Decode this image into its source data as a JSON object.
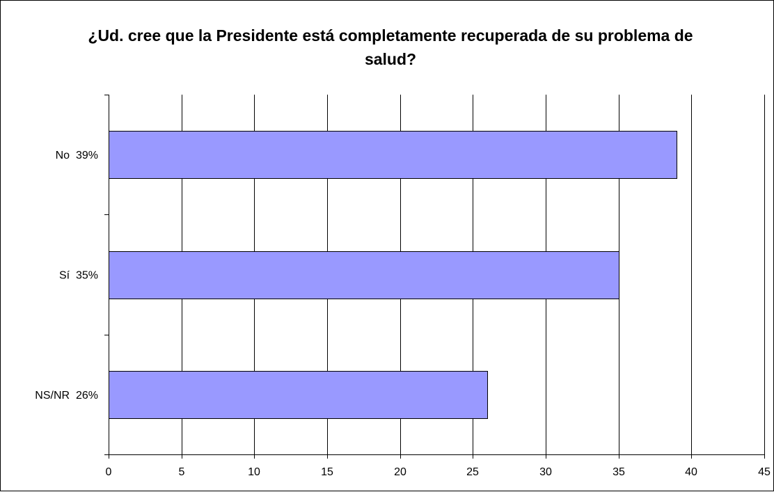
{
  "chart_data": {
    "type": "bar",
    "orientation": "horizontal",
    "title": "¿Ud. cree que la Presidente está completamente recuperada de su problema de salud?",
    "categories": [
      "No  39%",
      "Sí  35%",
      "NS/NR  26%"
    ],
    "values": [
      39,
      35,
      26
    ],
    "xlim": [
      0,
      45
    ],
    "x_ticks": [
      0,
      5,
      10,
      15,
      20,
      25,
      30,
      35,
      40,
      45
    ],
    "grid": "vertical",
    "legend": "none",
    "bar_color": "#9999ff",
    "bar_border_color": "#000000"
  }
}
